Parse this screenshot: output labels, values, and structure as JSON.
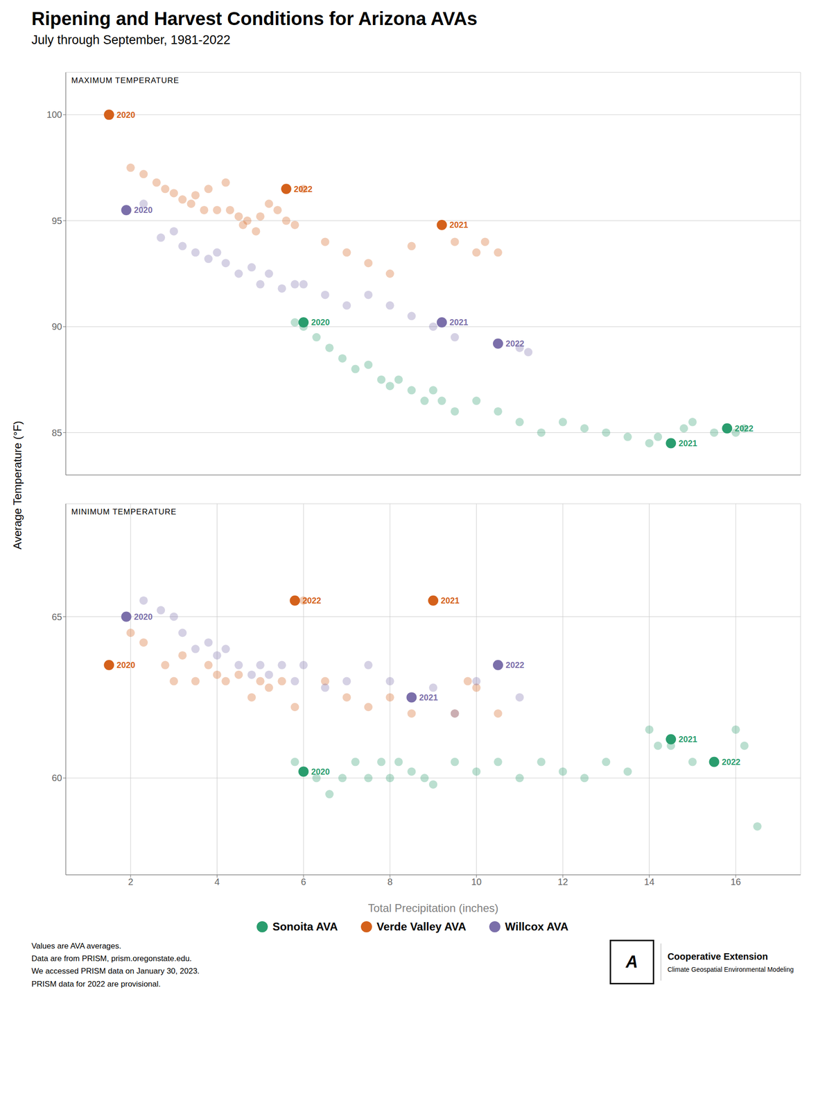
{
  "title": "Ripening and Harvest Conditions for Arizona AVAs",
  "subtitle": "July through September, 1981-2022",
  "xlabel": "Total Precipitation (inches)",
  "ylabel": "Average Temperature (°F)",
  "legend": "bottom",
  "footnote": "Values are AVA averages.\nData are from PRISM, prism.oregonstate.edu.\nWe accessed PRISM data on January 30, 2023.\nPRISM data for 2022 are provisional.",
  "credit": [
    "A",
    "Cooperative Extension",
    "Climate Geospatial Environmental Modeling"
  ],
  "chart_data": [
    {
      "type": "scatter",
      "title": "MAXIMUM TEMPERATURE",
      "xlim": [
        0.5,
        17.5
      ],
      "xticks": [
        2,
        4,
        6,
        8,
        10,
        12,
        14,
        16
      ],
      "ylim": [
        83.0,
        102.0
      ],
      "yticks": [
        85,
        90,
        95,
        100
      ],
      "grid": true,
      "tick_labels": "y",
      "series": [
        {
          "name": "Sonoita AVA",
          "color": "#2a9d6e",
          "x": [
            5.8,
            6.0,
            6.3,
            6.6,
            6.9,
            7.2,
            7.5,
            7.8,
            8.0,
            8.2,
            8.5,
            8.8,
            9.0,
            9.2,
            9.5,
            10.0,
            10.5,
            11.0,
            11.5,
            12.0,
            12.5,
            13.0,
            13.5,
            14.0,
            14.2,
            14.5,
            14.8,
            15.0,
            15.5,
            16.0,
            16.2
          ],
          "values": [
            90.2,
            90.0,
            89.5,
            89.0,
            88.5,
            88.0,
            88.2,
            87.5,
            87.2,
            87.5,
            87.0,
            86.5,
            87.0,
            86.5,
            86.0,
            86.5,
            86.0,
            85.5,
            85.0,
            85.5,
            85.2,
            85.0,
            84.8,
            84.5,
            84.8,
            84.5,
            85.2,
            85.5,
            85.0,
            85.0,
            85.2
          ],
          "annotations": [
            {
              "x": 6.0,
              "y": 90.2,
              "text": "2020"
            },
            {
              "x": 14.5,
              "y": 84.5,
              "text": "2021"
            },
            {
              "x": 15.8,
              "y": 85.2,
              "text": "2022"
            }
          ]
        },
        {
          "name": "Verde Valley AVA",
          "color": "#d4611b",
          "x": [
            1.5,
            2.0,
            2.3,
            2.6,
            2.8,
            3.0,
            3.2,
            3.4,
            3.5,
            3.7,
            3.8,
            4.0,
            4.2,
            4.3,
            4.5,
            4.6,
            4.7,
            4.9,
            5.0,
            5.2,
            5.4,
            5.6,
            5.8,
            6.0,
            6.5,
            7.0,
            7.5,
            8.0,
            8.5,
            9.2,
            9.5,
            10.0,
            10.2,
            10.5
          ],
          "values": [
            100.0,
            97.5,
            97.2,
            96.8,
            96.5,
            96.3,
            96.0,
            95.8,
            96.2,
            95.5,
            96.5,
            95.5,
            96.8,
            95.5,
            95.2,
            94.8,
            95.0,
            94.5,
            95.2,
            95.8,
            95.5,
            95.0,
            94.8,
            96.5,
            94.0,
            93.5,
            93.0,
            92.5,
            93.8,
            94.8,
            94.0,
            93.5,
            94.0,
            93.5
          ],
          "annotations": [
            {
              "x": 1.5,
              "y": 100.0,
              "text": "2020"
            },
            {
              "x": 9.2,
              "y": 94.8,
              "text": "2021"
            },
            {
              "x": 5.6,
              "y": 96.5,
              "text": "2022"
            }
          ]
        },
        {
          "name": "Willcox AVA",
          "color": "#7b6faa",
          "x": [
            1.9,
            2.3,
            2.7,
            3.0,
            3.2,
            3.5,
            3.8,
            4.0,
            4.2,
            4.5,
            4.8,
            5.0,
            5.2,
            5.5,
            5.8,
            6.0,
            6.5,
            7.0,
            7.5,
            8.0,
            8.5,
            9.0,
            9.2,
            9.5,
            10.5,
            11.0,
            11.2
          ],
          "values": [
            95.5,
            95.8,
            94.2,
            94.5,
            93.8,
            93.5,
            93.2,
            93.5,
            93.0,
            92.5,
            92.8,
            92.0,
            92.5,
            91.8,
            92.0,
            92.0,
            91.5,
            91.0,
            91.5,
            91.0,
            90.5,
            90.0,
            90.2,
            89.5,
            89.2,
            89.0,
            88.8
          ],
          "annotations": [
            {
              "x": 1.9,
              "y": 95.5,
              "text": "2020"
            },
            {
              "x": 9.2,
              "y": 90.2,
              "text": "2021"
            },
            {
              "x": 10.5,
              "y": 89.2,
              "text": "2022"
            }
          ]
        }
      ]
    },
    {
      "type": "scatter",
      "title": "MINIMUM TEMPERATURE",
      "xlim": [
        0.5,
        17.5
      ],
      "xticks": [
        2,
        4,
        6,
        8,
        10,
        12,
        14,
        16
      ],
      "ylim": [
        57.0,
        68.5
      ],
      "yticks": [
        60,
        65
      ],
      "grid": true,
      "series": [
        {
          "name": "Sonoita AVA",
          "color": "#2a9d6e",
          "x": [
            5.8,
            6.0,
            6.3,
            6.6,
            6.9,
            7.2,
            7.5,
            7.8,
            8.0,
            8.2,
            8.5,
            8.8,
            9.0,
            9.5,
            10.0,
            10.5,
            11.0,
            11.5,
            12.0,
            12.5,
            13.0,
            13.5,
            14.0,
            14.2,
            14.5,
            15.0,
            15.5,
            16.0,
            16.2,
            16.5
          ],
          "values": [
            60.5,
            60.2,
            60.0,
            59.5,
            60.0,
            60.5,
            60.0,
            60.5,
            60.0,
            60.5,
            60.2,
            60.0,
            59.8,
            60.5,
            60.2,
            60.5,
            60.0,
            60.5,
            60.2,
            60.0,
            60.5,
            60.2,
            61.5,
            61.0,
            61.0,
            60.5,
            60.5,
            61.5,
            61.0,
            58.5
          ],
          "annotations": [
            {
              "x": 6.0,
              "y": 60.2,
              "text": "2020"
            },
            {
              "x": 14.5,
              "y": 61.2,
              "text": "2021"
            },
            {
              "x": 15.5,
              "y": 60.5,
              "text": "2022"
            }
          ]
        },
        {
          "name": "Verde Valley AVA",
          "color": "#d4611b",
          "x": [
            1.5,
            2.0,
            2.3,
            2.8,
            3.0,
            3.2,
            3.5,
            3.8,
            4.0,
            4.2,
            4.5,
            4.8,
            5.0,
            5.2,
            5.5,
            5.8,
            6.0,
            6.5,
            7.0,
            7.5,
            8.0,
            8.5,
            9.0,
            9.5,
            9.8,
            10.0,
            10.5
          ],
          "values": [
            63.5,
            64.5,
            64.2,
            63.5,
            63.0,
            63.8,
            63.0,
            63.5,
            63.2,
            63.0,
            63.2,
            62.5,
            63.0,
            62.8,
            63.0,
            62.2,
            65.5,
            63.0,
            62.5,
            62.2,
            62.5,
            62.0,
            65.5,
            62.0,
            63.0,
            62.8,
            62.0
          ],
          "annotations": [
            {
              "x": 1.5,
              "y": 63.5,
              "text": "2020"
            },
            {
              "x": 9.0,
              "y": 65.5,
              "text": "2021"
            },
            {
              "x": 5.8,
              "y": 65.5,
              "text": "2022"
            }
          ]
        },
        {
          "name": "Willcox AVA",
          "color": "#7b6faa",
          "x": [
            1.9,
            2.3,
            2.7,
            3.0,
            3.2,
            3.5,
            3.8,
            4.0,
            4.2,
            4.5,
            4.8,
            5.0,
            5.2,
            5.5,
            5.8,
            6.0,
            6.5,
            7.0,
            7.5,
            8.0,
            8.5,
            9.0,
            9.5,
            10.0,
            10.5,
            11.0
          ],
          "values": [
            65.0,
            65.5,
            65.2,
            65.0,
            64.5,
            64.0,
            64.2,
            63.8,
            64.0,
            63.5,
            63.2,
            63.5,
            63.2,
            63.5,
            63.0,
            63.5,
            62.8,
            63.0,
            63.5,
            63.0,
            62.5,
            62.8,
            62.0,
            63.0,
            63.5,
            62.5
          ],
          "annotations": [
            {
              "x": 1.9,
              "y": 65.0,
              "text": "2020"
            },
            {
              "x": 8.5,
              "y": 62.5,
              "text": "2021"
            },
            {
              "x": 10.5,
              "y": 63.5,
              "text": "2022"
            }
          ]
        }
      ]
    }
  ]
}
